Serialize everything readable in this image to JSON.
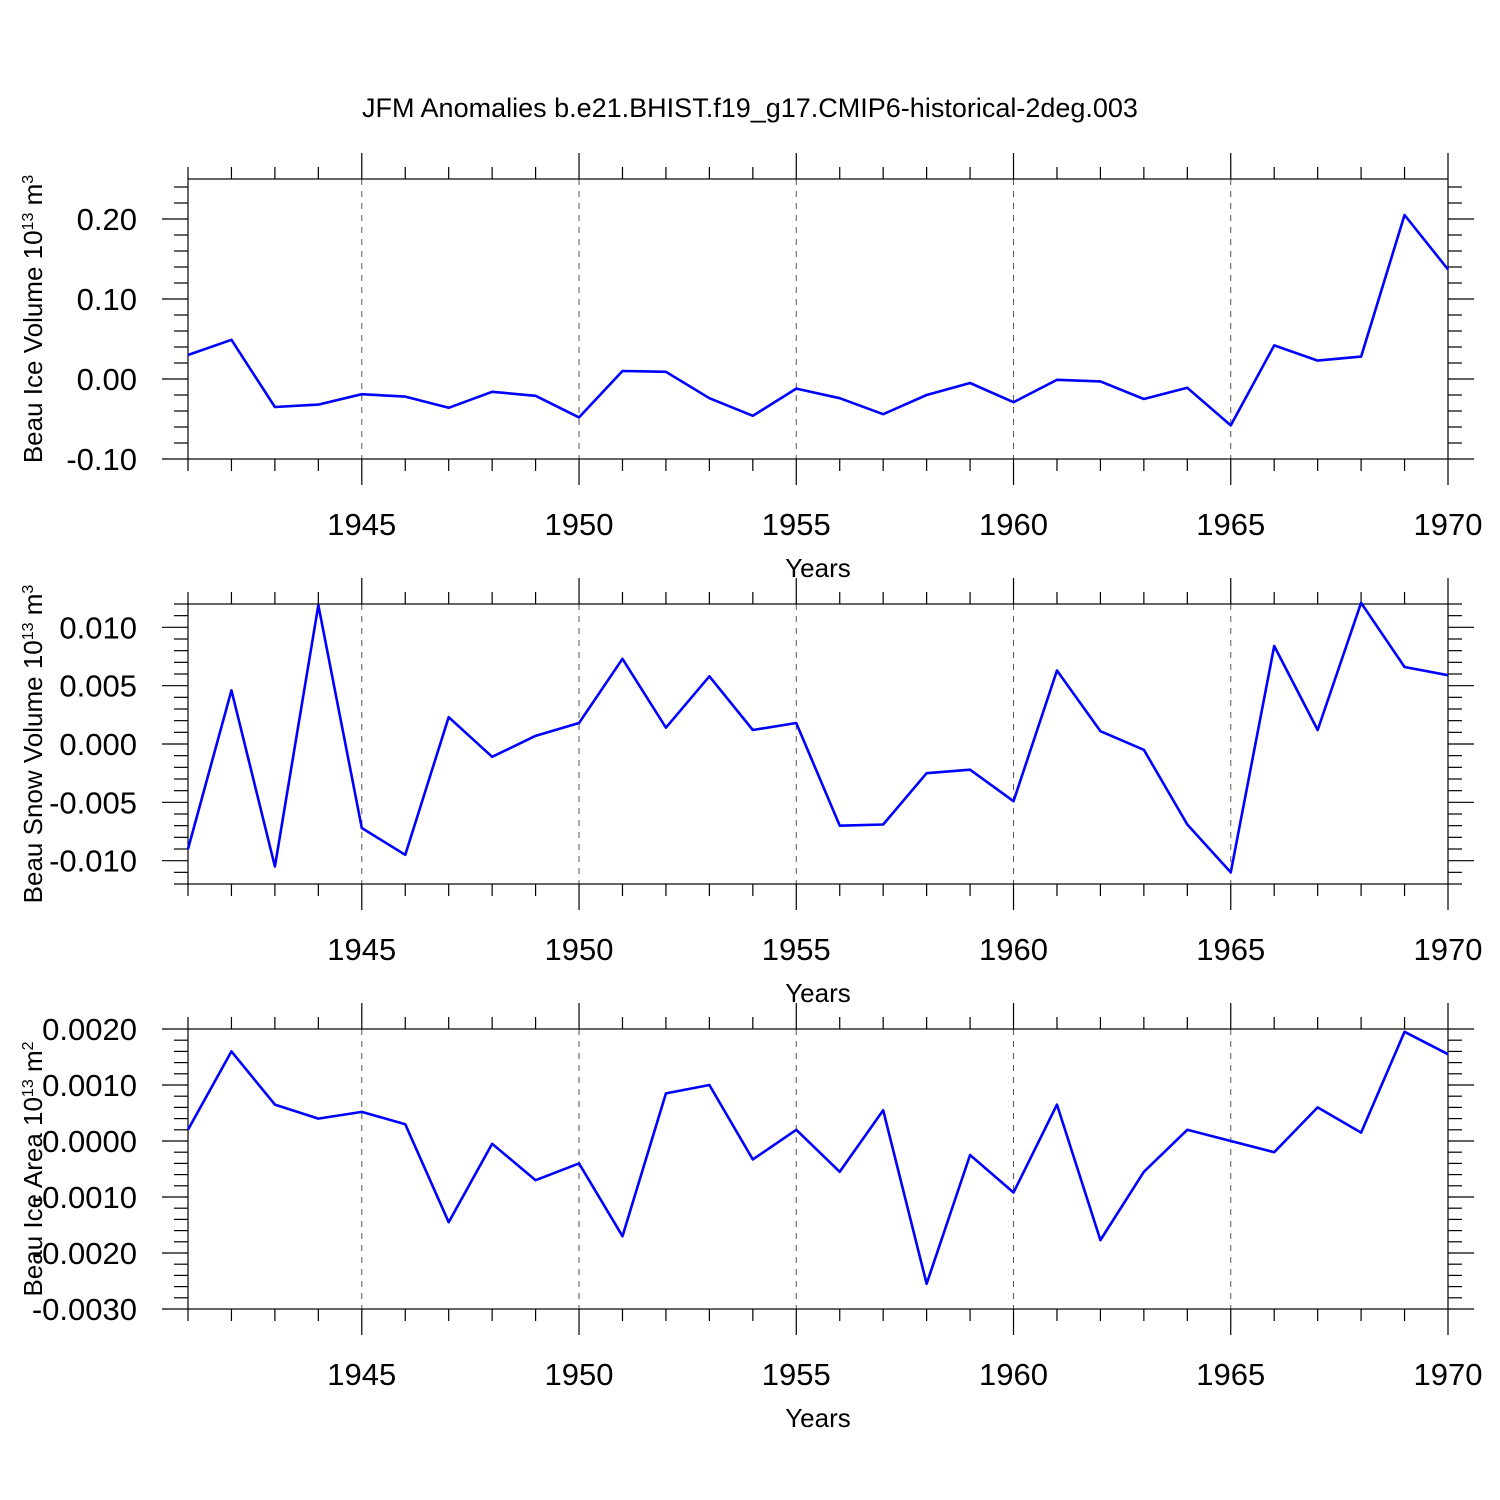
{
  "title": "JFM Anomalies b.e21.BHIST.f19_g17.CMIP6-historical-2deg.003",
  "colors": {
    "line": "#0000ff",
    "axis": "#000000",
    "grid": "#555555"
  },
  "chart_data": [
    {
      "type": "line",
      "xlabel": "Years",
      "ylabel": "Beau Ice Volume 10",
      "ylabel_exponent": "13",
      "ylabel_unit": " m",
      "ylabel_unit_exponent": "3",
      "xlim": [
        1941,
        1970
      ],
      "ylim": [
        -0.1,
        0.25
      ],
      "x_ticks": [
        "1945",
        "1950",
        "1955",
        "1960",
        "1965",
        "1970"
      ],
      "y_ticks": [
        "0.20",
        "0.10",
        "0.00",
        "-0.10"
      ],
      "grid": "vertical dashed at major ticks",
      "x": [
        1941,
        1942,
        1943,
        1944,
        1945,
        1946,
        1947,
        1948,
        1949,
        1950,
        1951,
        1952,
        1953,
        1954,
        1955,
        1956,
        1957,
        1958,
        1959,
        1960,
        1961,
        1962,
        1963,
        1964,
        1965,
        1966,
        1967,
        1968,
        1969,
        1970
      ],
      "values": [
        0.03,
        0.049,
        -0.035,
        -0.032,
        -0.019,
        -0.022,
        -0.036,
        -0.016,
        -0.021,
        -0.048,
        0.01,
        0.009,
        -0.024,
        -0.046,
        -0.012,
        -0.024,
        -0.044,
        -0.02,
        -0.005,
        -0.029,
        -0.001,
        -0.003,
        -0.025,
        -0.011,
        -0.058,
        0.042,
        0.023,
        0.028,
        0.205,
        0.137
      ]
    },
    {
      "type": "line",
      "xlabel": "Years",
      "ylabel": "Beau Snow Volume 10",
      "ylabel_exponent": "13",
      "ylabel_unit": " m",
      "ylabel_unit_exponent": "3",
      "xlim": [
        1941,
        1970
      ],
      "ylim": [
        -0.012,
        0.012
      ],
      "x_ticks": [
        "1945",
        "1950",
        "1955",
        "1960",
        "1965",
        "1970"
      ],
      "y_ticks": [
        "0.010",
        "0.005",
        "0.000",
        "-0.005",
        "-0.010"
      ],
      "grid": "vertical dashed at major ticks",
      "x": [
        1941,
        1942,
        1943,
        1944,
        1945,
        1946,
        1947,
        1948,
        1949,
        1950,
        1951,
        1952,
        1953,
        1954,
        1955,
        1956,
        1957,
        1958,
        1959,
        1960,
        1961,
        1962,
        1963,
        1964,
        1965,
        1966,
        1967,
        1968,
        1969,
        1970
      ],
      "values": [
        -0.009,
        0.0046,
        -0.0105,
        0.0119,
        -0.0072,
        -0.0095,
        0.0023,
        -0.0011,
        0.0007,
        0.0018,
        0.0073,
        0.0014,
        0.0058,
        0.0012,
        0.0018,
        -0.007,
        -0.0069,
        -0.0025,
        -0.0022,
        -0.0049,
        0.0063,
        0.0011,
        -0.0005,
        -0.0069,
        -0.011,
        0.0084,
        0.0012,
        0.0121,
        0.0066,
        0.0059
      ]
    },
    {
      "type": "line",
      "xlabel": "Years",
      "ylabel": "Beau Ice Area 10",
      "ylabel_exponent": "13",
      "ylabel_unit": " m",
      "ylabel_unit_exponent": "2",
      "xlim": [
        1941,
        1970
      ],
      "ylim": [
        -0.003,
        0.002
      ],
      "x_ticks": [
        "1945",
        "1950",
        "1955",
        "1960",
        "1965",
        "1970"
      ],
      "y_ticks": [
        "0.0020",
        "0.0010",
        "0.0000",
        "-0.0010",
        "-0.0020",
        "-0.0030"
      ],
      "grid": "vertical dashed at major ticks",
      "x": [
        1941,
        1942,
        1943,
        1944,
        1945,
        1946,
        1947,
        1948,
        1949,
        1950,
        1951,
        1952,
        1953,
        1954,
        1955,
        1956,
        1957,
        1958,
        1959,
        1960,
        1961,
        1962,
        1963,
        1964,
        1965,
        1966,
        1967,
        1968,
        1969,
        1970
      ],
      "values": [
        0.0002,
        0.0016,
        0.00065,
        0.0004,
        0.00052,
        0.0003,
        -0.00145,
        -5e-05,
        -0.0007,
        -0.0004,
        -0.0017,
        0.00085,
        0.001,
        -0.00033,
        0.0002,
        -0.00055,
        0.00055,
        -0.00255,
        -0.00025,
        -0.00092,
        0.00065,
        -0.00177,
        -0.00055,
        0.0002,
        0.0,
        -0.0002,
        0.0006,
        0.00015,
        0.00195,
        0.00155
      ]
    }
  ]
}
